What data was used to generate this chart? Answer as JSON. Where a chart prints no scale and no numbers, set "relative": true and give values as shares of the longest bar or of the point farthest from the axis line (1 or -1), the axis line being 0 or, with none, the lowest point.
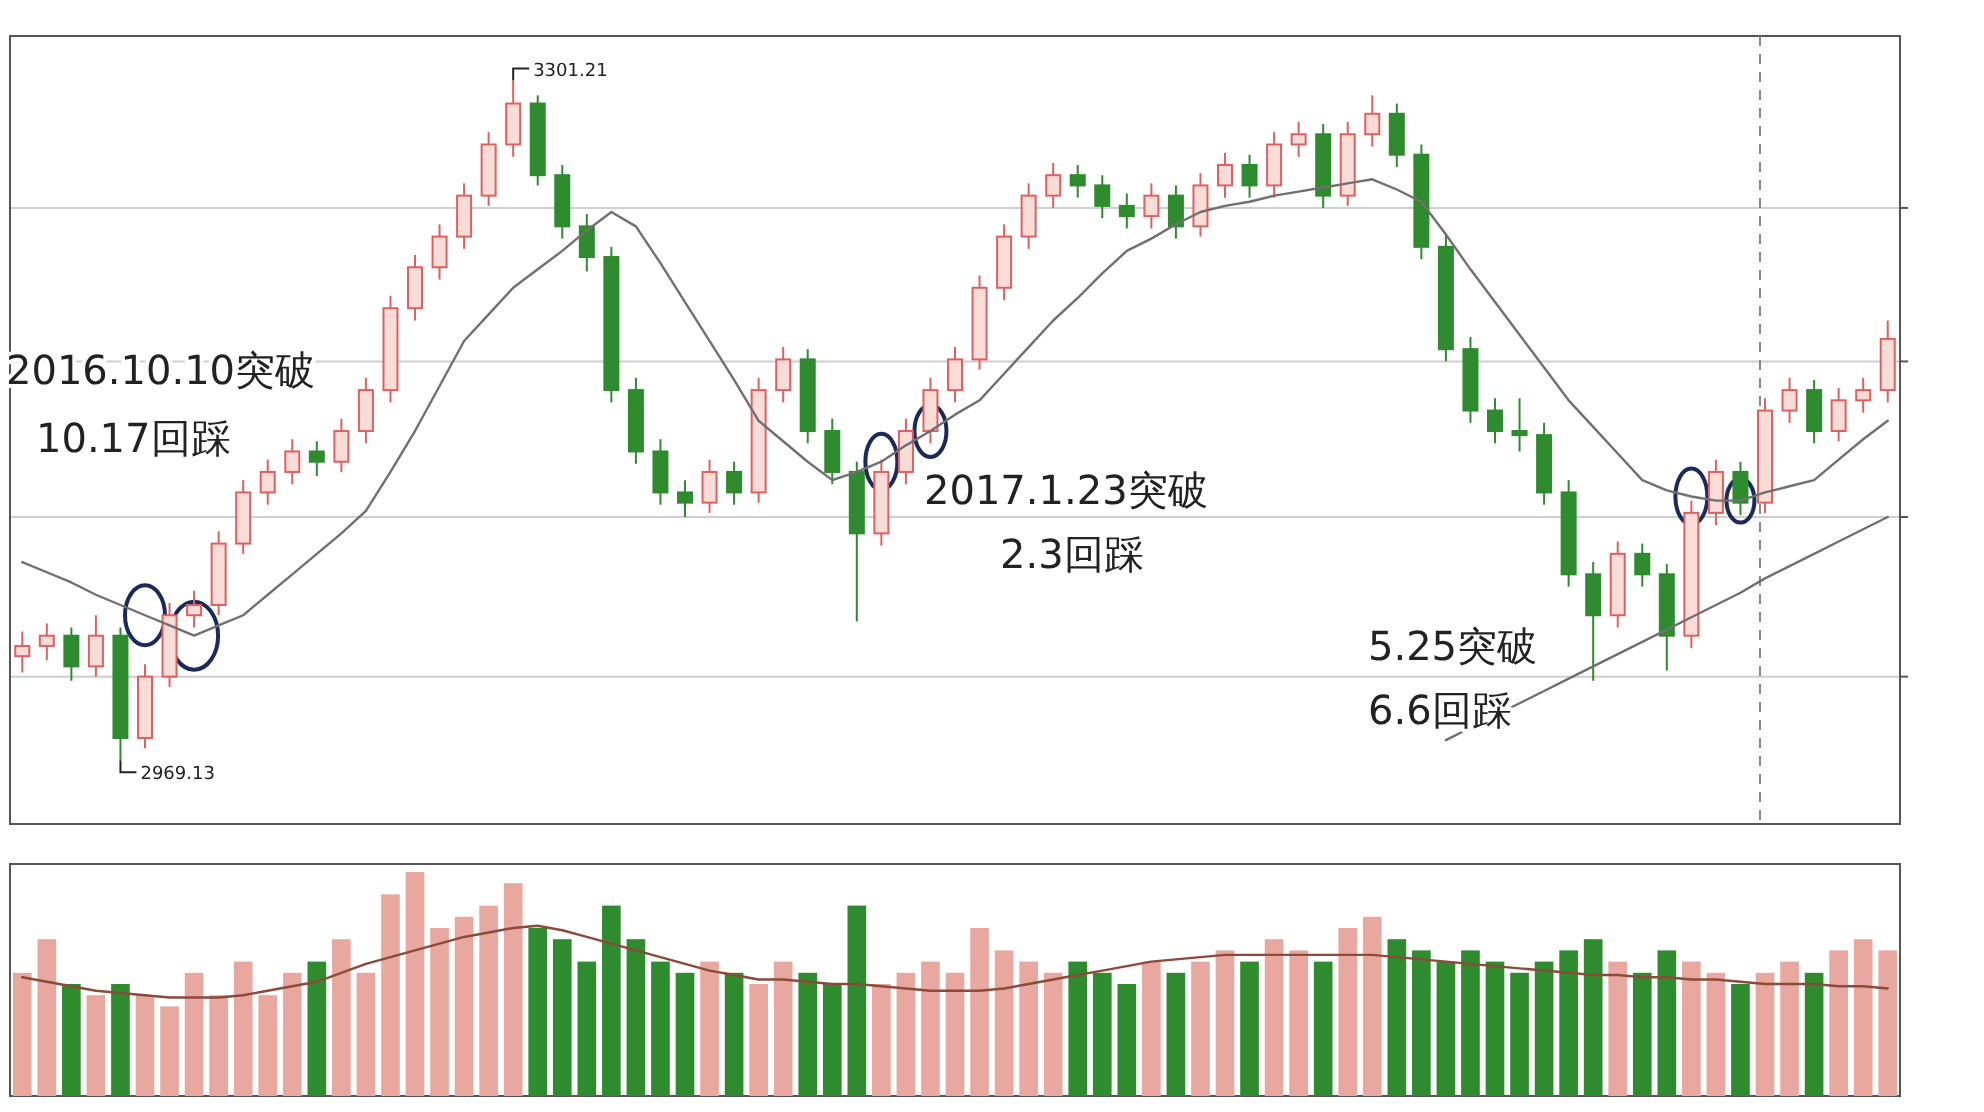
{
  "chart_data": [
    {
      "type": "candlestick",
      "categories": [
        null,
        null,
        null,
        null,
        null,
        null,
        null,
        null,
        null,
        null,
        null,
        null,
        null,
        null,
        null,
        null,
        null,
        null,
        null,
        null,
        null,
        null,
        null,
        null,
        null,
        null,
        null,
        null,
        null,
        null,
        null,
        null,
        null,
        null,
        null,
        null,
        null,
        null,
        null,
        null,
        null,
        null,
        null,
        null,
        null,
        null,
        null,
        null,
        null,
        null,
        null,
        null,
        null,
        null,
        null,
        null,
        null,
        null,
        null,
        null,
        null,
        null,
        null,
        null,
        null,
        null,
        null,
        null,
        null,
        null,
        null,
        null,
        null,
        null,
        null,
        null,
        null
      ],
      "ohlc": [
        [
          3020,
          3032,
          3012,
          3025
        ],
        [
          3025,
          3036,
          3018,
          3030
        ],
        [
          3030,
          3034,
          3008,
          3015
        ],
        [
          3015,
          3040,
          3010,
          3030
        ],
        [
          3030,
          3034,
          2969.13,
          2980
        ],
        [
          2980,
          3016,
          2975,
          3010
        ],
        [
          3010,
          3046,
          3005,
          3040
        ],
        [
          3040,
          3052,
          3034,
          3045
        ],
        [
          3045,
          3081,
          3040,
          3075
        ],
        [
          3075,
          3106,
          3070,
          3100
        ],
        [
          3100,
          3116,
          3094,
          3110
        ],
        [
          3110,
          3126,
          3104,
          3120
        ],
        [
          3120,
          3125,
          3108,
          3115
        ],
        [
          3115,
          3136,
          3110,
          3130
        ],
        [
          3130,
          3156,
          3124,
          3150
        ],
        [
          3150,
          3196,
          3144,
          3190
        ],
        [
          3190,
          3216,
          3184,
          3210
        ],
        [
          3210,
          3231,
          3204,
          3225
        ],
        [
          3225,
          3251,
          3219,
          3245
        ],
        [
          3245,
          3276,
          3240,
          3270
        ],
        [
          3270,
          3301.21,
          3264,
          3290
        ],
        [
          3290,
          3294,
          3250,
          3255
        ],
        [
          3255,
          3260,
          3224,
          3230
        ],
        [
          3230,
          3236,
          3208,
          3215
        ],
        [
          3215,
          3220,
          3144,
          3150
        ],
        [
          3150,
          3156,
          3114,
          3120
        ],
        [
          3120,
          3126,
          3094,
          3100
        ],
        [
          3100,
          3106,
          3088,
          3095
        ],
        [
          3095,
          3116,
          3090,
          3110
        ],
        [
          3110,
          3115,
          3094,
          3100
        ],
        [
          3100,
          3156,
          3095,
          3150
        ],
        [
          3150,
          3171,
          3144,
          3165
        ],
        [
          3165,
          3170,
          3124,
          3130
        ],
        [
          3130,
          3136,
          3104,
          3110
        ],
        [
          3110,
          3115,
          3037,
          3080
        ],
        [
          3080,
          3116,
          3074,
          3110
        ],
        [
          3110,
          3136,
          3104,
          3130
        ],
        [
          3130,
          3156,
          3124,
          3150
        ],
        [
          3150,
          3171,
          3144,
          3165
        ],
        [
          3165,
          3206,
          3160,
          3200
        ],
        [
          3200,
          3231,
          3194,
          3225
        ],
        [
          3225,
          3251,
          3219,
          3245
        ],
        [
          3245,
          3261,
          3239,
          3255
        ],
        [
          3255,
          3260,
          3244,
          3250
        ],
        [
          3250,
          3255,
          3234,
          3240
        ],
        [
          3240,
          3246,
          3229,
          3235
        ],
        [
          3235,
          3251,
          3229,
          3245
        ],
        [
          3245,
          3250,
          3224,
          3230
        ],
        [
          3230,
          3256,
          3225,
          3250
        ],
        [
          3250,
          3266,
          3244,
          3260
        ],
        [
          3260,
          3265,
          3244,
          3250
        ],
        [
          3250,
          3276,
          3244,
          3270
        ],
        [
          3270,
          3281,
          3264,
          3275
        ],
        [
          3275,
          3280,
          3239,
          3245
        ],
        [
          3245,
          3281,
          3240,
          3275
        ],
        [
          3275,
          3294,
          3269,
          3285
        ],
        [
          3285,
          3290,
          3259,
          3265
        ],
        [
          3265,
          3270,
          3214,
          3220
        ],
        [
          3220,
          3226,
          3164,
          3170
        ],
        [
          3170,
          3176,
          3134,
          3140
        ],
        [
          3140,
          3146,
          3124,
          3130
        ],
        [
          3130,
          3146,
          3120,
          3128
        ],
        [
          3128,
          3134,
          3094,
          3100
        ],
        [
          3100,
          3106,
          3054,
          3060
        ],
        [
          3060,
          3066,
          3008,
          3040
        ],
        [
          3040,
          3076,
          3034,
          3070
        ],
        [
          3070,
          3075,
          3054,
          3060
        ],
        [
          3060,
          3065,
          3013,
          3030
        ],
        [
          3030,
          3096,
          3024,
          3090
        ],
        [
          3090,
          3116,
          3084,
          3110
        ],
        [
          3110,
          3115,
          3089,
          3095
        ],
        [
          3095,
          3146,
          3090,
          3140
        ],
        [
          3140,
          3156,
          3134,
          3150
        ],
        [
          3150,
          3155,
          3124,
          3130
        ],
        [
          3130,
          3151,
          3125,
          3145
        ],
        [
          3145,
          3156,
          3139,
          3150
        ],
        [
          3150,
          3184,
          3144,
          3175
        ]
      ],
      "colors": [
        "#e06060",
        "#e06060",
        "#2e8b2e",
        "#e06060",
        "#2e8b2e",
        "#e06060",
        "#e06060",
        "#e06060",
        "#e06060",
        "#e06060",
        "#e06060",
        "#e06060",
        "#2e8b2e",
        "#e06060",
        "#e06060",
        "#e06060",
        "#e06060",
        "#e06060",
        "#e06060",
        "#e06060",
        "#e06060",
        "#2e8b2e",
        "#2e8b2e",
        "#2e8b2e",
        "#2e8b2e",
        "#2e8b2e",
        "#2e8b2e",
        "#2e8b2e",
        "#e06060",
        "#2e8b2e",
        "#e06060",
        "#e06060",
        "#2e8b2e",
        "#2e8b2e",
        "#2e8b2e",
        "#e06060",
        "#e06060",
        "#e06060",
        "#e06060",
        "#e06060",
        "#e06060",
        "#e06060",
        "#e06060",
        "#2e8b2e",
        "#2e8b2e",
        "#2e8b2e",
        "#e06060",
        "#2e8b2e",
        "#e06060",
        "#e06060",
        "#2e8b2e",
        "#e06060",
        "#e06060",
        "#2e8b2e",
        "#e06060",
        "#e06060",
        "#2e8b2e",
        "#2e8b2e",
        "#2e8b2e",
        "#2e8b2e",
        "#2e8b2e",
        "#2e8b2e",
        "#2e8b2e",
        "#2e8b2e",
        "#2e8b2e",
        "#e06060",
        "#2e8b2e",
        "#2e8b2e",
        "#e06060",
        "#e06060",
        "#2e8b2e",
        "#e06060",
        "#e06060",
        "#2e8b2e",
        "#e06060",
        "#e06060",
        "#e06060"
      ],
      "series": [
        {
          "type": "line",
          "color": "#707070",
          "values": [
            3066,
            3061,
            3056,
            3050,
            3045,
            3040,
            3035,
            3030,
            3035,
            3040,
            3050,
            3060,
            3070,
            3080,
            3091,
            3110,
            3130,
            3152,
            3174,
            3187,
            3200,
            3209,
            3218,
            3228,
            3237,
            3230,
            3212,
            3193,
            3174,
            3155,
            3135,
            3125,
            3115,
            3106,
            3110,
            3115,
            3123,
            3130,
            3138,
            3145,
            3158,
            3171,
            3184,
            3195,
            3207,
            3218,
            3224,
            3231,
            3237,
            3240,
            3242,
            3245,
            3247,
            3249,
            3251,
            3253,
            3248,
            3242,
            3226,
            3209,
            3193,
            3177,
            3161,
            3145,
            3132,
            3119,
            3106,
            3101,
            3098,
            3096,
            3096,
            3100,
            3103,
            3106,
            3116,
            3126,
            3135
          ]
        },
        {
          "type": "line",
          "color": "#707070",
          "values": [
            null,
            null,
            null,
            null,
            null,
            null,
            null,
            null,
            null,
            null,
            null,
            null,
            null,
            null,
            null,
            null,
            null,
            null,
            null,
            null,
            null,
            null,
            null,
            null,
            null,
            null,
            null,
            null,
            null,
            null,
            null,
            null,
            null,
            null,
            null,
            null,
            null,
            null,
            null,
            null,
            null,
            null,
            null,
            null,
            null,
            null,
            null,
            null,
            null,
            null,
            null,
            null,
            null,
            null,
            null,
            null,
            null,
            null,
            2979,
            2985,
            2991,
            2997,
            3003,
            3009,
            3015,
            3021,
            3027,
            3033,
            3039,
            3045,
            3051,
            3058,
            3064,
            3070,
            3076,
            3082,
            3088
          ]
        }
      ],
      "ylim": [
        2938,
        3323
      ],
      "yticks": [
        {
          "value": 3239,
          "label": null
        },
        {
          "value": 3164,
          "label": null
        },
        {
          "value": 3088,
          "label": null
        },
        {
          "value": 3010,
          "label": null
        }
      ],
      "grid": "y",
      "annotations": [
        "3301.21",
        "2969.13",
        "2016.10.10突破",
        "10.17回踩",
        "2017.1.23突破",
        "2.3回踩",
        "5.25突破",
        "6.6回踩"
      ]
    },
    {
      "type": "bar",
      "relative": true,
      "categories": [
        null,
        null,
        null,
        null,
        null,
        null,
        null,
        null,
        null,
        null,
        null,
        null,
        null,
        null,
        null,
        null,
        null,
        null,
        null,
        null,
        null,
        null,
        null,
        null,
        null,
        null,
        null,
        null,
        null,
        null,
        null,
        null,
        null,
        null,
        null,
        null,
        null,
        null,
        null,
        null,
        null,
        null,
        null,
        null,
        null,
        null,
        null,
        null,
        null,
        null,
        null,
        null,
        null,
        null,
        null,
        null,
        null,
        null,
        null,
        null,
        null,
        null,
        null,
        null,
        null,
        null,
        null,
        null,
        null,
        null,
        null,
        null,
        null,
        null,
        null,
        null,
        null
      ],
      "series": [
        {
          "type": "bar",
          "colors": [
            "#e8a8a0",
            "#e8a8a0",
            "#2e8b2e",
            "#e8a8a0",
            "#2e8b2e",
            "#e8a8a0",
            "#e8a8a0",
            "#e8a8a0",
            "#e8a8a0",
            "#e8a8a0",
            "#e8a8a0",
            "#e8a8a0",
            "#2e8b2e",
            "#e8a8a0",
            "#e8a8a0",
            "#e8a8a0",
            "#e8a8a0",
            "#e8a8a0",
            "#e8a8a0",
            "#e8a8a0",
            "#e8a8a0",
            "#2e8b2e",
            "#2e8b2e",
            "#2e8b2e",
            "#2e8b2e",
            "#2e8b2e",
            "#2e8b2e",
            "#2e8b2e",
            "#e8a8a0",
            "#2e8b2e",
            "#e8a8a0",
            "#e8a8a0",
            "#2e8b2e",
            "#2e8b2e",
            "#2e8b2e",
            "#e8a8a0",
            "#e8a8a0",
            "#e8a8a0",
            "#e8a8a0",
            "#e8a8a0",
            "#e8a8a0",
            "#e8a8a0",
            "#e8a8a0",
            "#2e8b2e",
            "#2e8b2e",
            "#2e8b2e",
            "#e8a8a0",
            "#2e8b2e",
            "#e8a8a0",
            "#e8a8a0",
            "#2e8b2e",
            "#e8a8a0",
            "#e8a8a0",
            "#2e8b2e",
            "#e8a8a0",
            "#e8a8a0",
            "#2e8b2e",
            "#2e8b2e",
            "#2e8b2e",
            "#2e8b2e",
            "#2e8b2e",
            "#2e8b2e",
            "#2e8b2e",
            "#2e8b2e",
            "#2e8b2e",
            "#e8a8a0",
            "#2e8b2e",
            "#2e8b2e",
            "#e8a8a0",
            "#e8a8a0",
            "#2e8b2e",
            "#e8a8a0",
            "#e8a8a0",
            "#2e8b2e",
            "#e8a8a0",
            "#e8a8a0",
            "#e8a8a0"
          ],
          "values": [
            0.55,
            0.7,
            0.5,
            0.45,
            0.5,
            0.45,
            0.4,
            0.55,
            0.45,
            0.6,
            0.45,
            0.55,
            0.6,
            0.7,
            0.55,
            0.9,
            1.0,
            0.75,
            0.8,
            0.85,
            0.95,
            0.75,
            0.7,
            0.6,
            0.85,
            0.7,
            0.6,
            0.55,
            0.6,
            0.55,
            0.5,
            0.6,
            0.55,
            0.5,
            0.85,
            0.5,
            0.55,
            0.6,
            0.55,
            0.75,
            0.65,
            0.6,
            0.55,
            0.6,
            0.55,
            0.5,
            0.6,
            0.55,
            0.6,
            0.65,
            0.6,
            0.7,
            0.65,
            0.6,
            0.75,
            0.8,
            0.7,
            0.65,
            0.6,
            0.65,
            0.6,
            0.55,
            0.6,
            0.65,
            0.7,
            0.6,
            0.55,
            0.65,
            0.6,
            0.55,
            0.5,
            0.55,
            0.6,
            0.55,
            0.65,
            0.7,
            0.65
          ]
        },
        {
          "type": "line",
          "color": "#8b4a3a",
          "values": [
            0.53,
            0.51,
            0.49,
            0.47,
            0.46,
            0.45,
            0.44,
            0.44,
            0.44,
            0.45,
            0.47,
            0.49,
            0.51,
            0.55,
            0.59,
            0.62,
            0.65,
            0.68,
            0.71,
            0.73,
            0.75,
            0.76,
            0.74,
            0.71,
            0.68,
            0.65,
            0.62,
            0.59,
            0.56,
            0.54,
            0.52,
            0.52,
            0.51,
            0.5,
            0.5,
            0.49,
            0.48,
            0.47,
            0.47,
            0.47,
            0.48,
            0.5,
            0.52,
            0.54,
            0.56,
            0.58,
            0.6,
            0.61,
            0.62,
            0.63,
            0.63,
            0.63,
            0.63,
            0.63,
            0.63,
            0.63,
            0.62,
            0.61,
            0.6,
            0.59,
            0.58,
            0.57,
            0.56,
            0.55,
            0.54,
            0.54,
            0.53,
            0.53,
            0.52,
            0.52,
            0.51,
            0.5,
            0.5,
            0.5,
            0.49,
            0.49,
            0.48
          ]
        }
      ]
    }
  ]
}
